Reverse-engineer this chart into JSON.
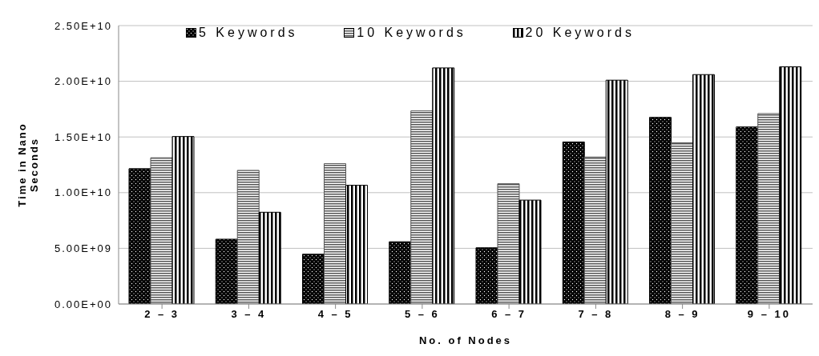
{
  "chart_data": {
    "type": "bar",
    "xlabel": "No. of Nodes",
    "ylabel": "Time in Nano Seconds",
    "categories": [
      "2 – 3",
      "3 – 4",
      "4 – 5",
      "5 – 6",
      "6 – 7",
      "7 – 8",
      "8 – 9",
      "9 – 10"
    ],
    "series": [
      {
        "name": "5 Keywords",
        "color": "#000000",
        "values": [
          12150000000.0,
          5820000000.0,
          4470000000.0,
          5590000000.0,
          5050000000.0,
          14550000000.0,
          16760000000.0,
          15900000000.0
        ]
      },
      {
        "name": "10 Keywords",
        "color": "#555555",
        "values": [
          13130000000.0,
          12000000000.0,
          12600000000.0,
          17340000000.0,
          10800000000.0,
          13200000000.0,
          14480000000.0,
          17100000000.0
        ]
      },
      {
        "name": "20 Keywords",
        "color": "#000000",
        "values": [
          15040000000.0,
          8240000000.0,
          10660000000.0,
          21200000000.0,
          9330000000.0,
          20100000000.0,
          20600000000.0,
          21300000000.0
        ]
      }
    ],
    "ylim": [
      0,
      25000000000.0
    ],
    "yticks": [
      {
        "value": 0,
        "label": "0.00E+00"
      },
      {
        "value": 5000000000.0,
        "label": "5.00E+09"
      },
      {
        "value": 10000000000.0,
        "label": "1.00E+10"
      },
      {
        "value": 15000000000.0,
        "label": "1.50E+10"
      },
      {
        "value": 20000000000.0,
        "label": "2.00E+10"
      },
      {
        "value": 25000000000.0,
        "label": "2.50E+10"
      }
    ],
    "grid": "y",
    "legend": "top"
  }
}
